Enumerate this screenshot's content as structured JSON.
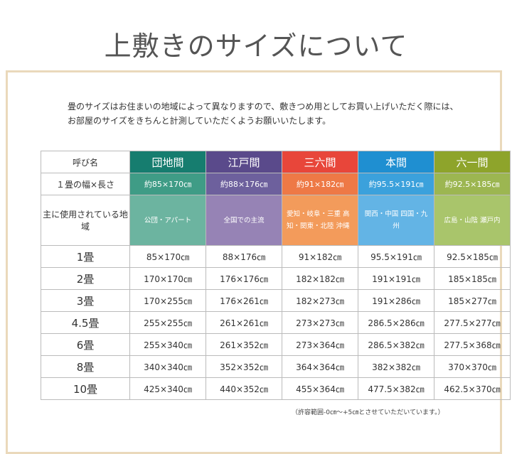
{
  "title": "上敷きのサイズについて",
  "intro": [
    "畳のサイズはお住まいの地域によって異なりますので、敷きつめ用としてお買い上げいただく際には、",
    "お部屋のサイズをきちんと計測していただくようお願いいたします。"
  ],
  "table": {
    "header_label": "呼び名",
    "size_label": "１畳の幅×長さ",
    "region_label": "主に使用されている地域",
    "columns": [
      {
        "name": "団地間",
        "size": "約85×170㎝",
        "region": "公団・アパート",
        "colors": [
          "#167d6f",
          "#3f9c86",
          "#6cb4a0"
        ]
      },
      {
        "name": "江戸間",
        "size": "約88×176㎝",
        "region": "全国での主流",
        "colors": [
          "#5a4a8b",
          "#6d609d",
          "#9683b5"
        ]
      },
      {
        "name": "三六間",
        "size": "約91×182㎝",
        "region": "愛知・岐阜・三重 高知・関東・北陸 沖縄",
        "colors": [
          "#e8463a",
          "#ee7946",
          "#f39b5b"
        ]
      },
      {
        "name": "本間",
        "size": "約95.5×191㎝",
        "region": "関西・中国 四国・九州",
        "colors": [
          "#1f8fd1",
          "#3ba1dc",
          "#63b4e5"
        ]
      },
      {
        "name": "六一間",
        "size": "約92.5×185㎝",
        "region": "広島・山陰 瀬戸内",
        "colors": [
          "#8ea42b",
          "#9cb651",
          "#a9c56b"
        ]
      }
    ],
    "rows": [
      {
        "label": "1畳",
        "values": [
          "85×170㎝",
          "88×176㎝",
          "91×182㎝",
          "95.5×191㎝",
          "92.5×185㎝"
        ]
      },
      {
        "label": "2畳",
        "values": [
          "170×170㎝",
          "176×176㎝",
          "182×182㎝",
          "191×191㎝",
          "185×185㎝"
        ]
      },
      {
        "label": "3畳",
        "values": [
          "170×255㎝",
          "176×261㎝",
          "182×273㎝",
          "191×286㎝",
          "185×277㎝"
        ]
      },
      {
        "label": "4.5畳",
        "values": [
          "255×255㎝",
          "261×261㎝",
          "273×273㎝",
          "286.5×286㎝",
          "277.5×277㎝"
        ]
      },
      {
        "label": "6畳",
        "values": [
          "255×340㎝",
          "261×352㎝",
          "273×364㎝",
          "286.5×382㎝",
          "277.5×368㎝"
        ]
      },
      {
        "label": "8畳",
        "values": [
          "340×340㎝",
          "352×352㎝",
          "364×364㎝",
          "382×382㎝",
          "370×370㎝"
        ]
      },
      {
        "label": "10畳",
        "values": [
          "425×340㎝",
          "440×352㎝",
          "455×364㎝",
          "477.5×382㎝",
          "462.5×370㎝"
        ]
      }
    ]
  },
  "note": "（許容範囲-0㎝～+5㎝とさせていただいています。）"
}
